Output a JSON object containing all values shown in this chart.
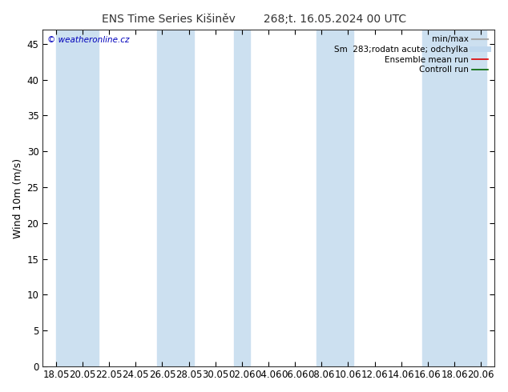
{
  "title_left": "ENS Time Series Kišiněv",
  "title_right": "268;t. 16.05.2024 00 UTC",
  "ylabel": "Wind 10m (m/s)",
  "ylim": [
    0,
    47
  ],
  "yticks": [
    0,
    5,
    10,
    15,
    20,
    25,
    30,
    35,
    40,
    45
  ],
  "background_color": "#ffffff",
  "plot_bg_color": "#ffffff",
  "stripe_color": "#cce0f0",
  "xtick_labels": [
    "18.05",
    "20.05",
    "22.05",
    "24.05",
    "26.05",
    "28.05",
    "30.05",
    "02.06",
    "04.06",
    "06.06",
    "08.06",
    "10.06",
    "12.06",
    "14.06",
    "16.06",
    "18.06",
    "20.06"
  ],
  "xtick_positions": [
    0,
    1,
    2,
    3,
    4,
    5,
    6,
    7,
    8,
    9,
    10,
    11,
    12,
    13,
    14,
    15,
    16
  ],
  "watermark": "© weatheronline.cz",
  "watermark_color": "#0000bb",
  "legend_items": [
    {
      "label": "min/max",
      "color": "#aaaaaa",
      "lw": 1.5,
      "ls": "-"
    },
    {
      "label": "Sm  283;rodatn acute; odchylka",
      "color": "#c0d8ee",
      "lw": 5,
      "ls": "-"
    },
    {
      "label": "Ensemble mean run",
      "color": "#dd0000",
      "lw": 1.2,
      "ls": "-"
    },
    {
      "label": "Controll run",
      "color": "#006600",
      "lw": 1.2,
      "ls": "-"
    }
  ],
  "stripe_bands": [
    [
      0.0,
      1.6
    ],
    [
      3.8,
      5.2
    ],
    [
      6.7,
      7.3
    ],
    [
      9.8,
      11.2
    ],
    [
      13.8,
      16.2
    ]
  ],
  "title_fontsize": 10,
  "axis_fontsize": 9,
  "tick_fontsize": 8.5,
  "legend_fontsize": 7.5
}
